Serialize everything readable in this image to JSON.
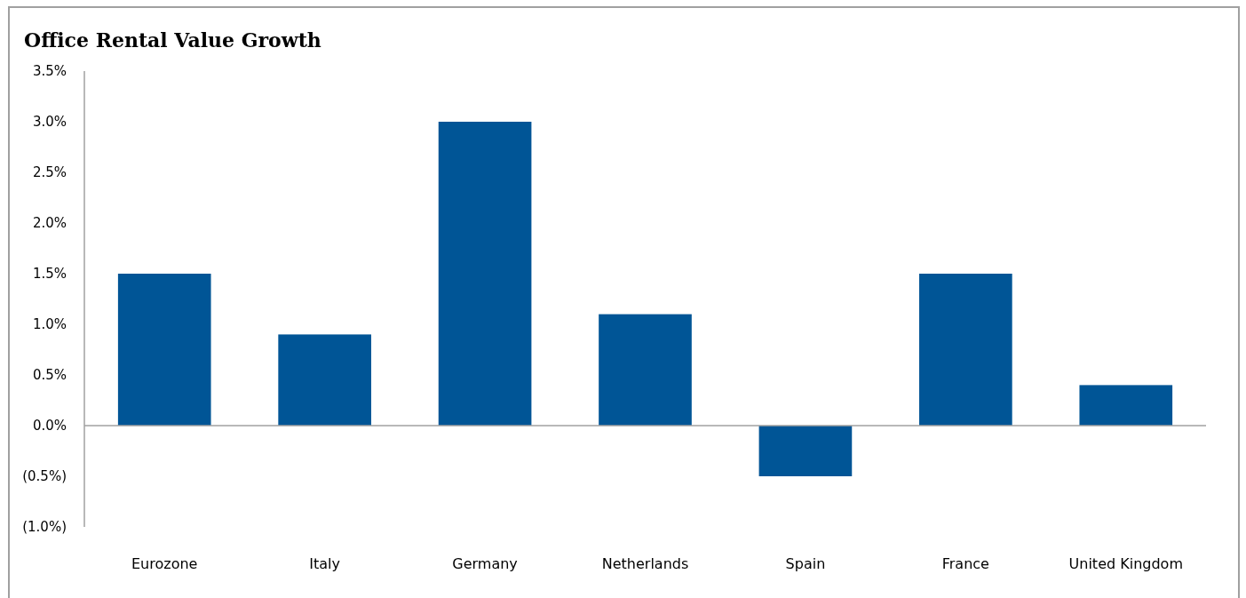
{
  "chart_data": {
    "type": "bar",
    "title": "Office Rental Value Growth",
    "categories": [
      "Eurozone",
      "Italy",
      "Germany",
      "Netherlands",
      "Spain",
      "France",
      "United Kingdom"
    ],
    "values": [
      1.5,
      0.9,
      3.0,
      1.1,
      -0.5,
      1.5,
      0.4
    ],
    "color": "#005596",
    "ylim": [
      -1.0,
      3.5
    ],
    "yticks": [
      {
        "value": -1.0,
        "label": "(1.0%)"
      },
      {
        "value": -0.5,
        "label": "(0.5%)"
      },
      {
        "value": 0,
        "label": "0.0%"
      },
      {
        "value": 0.5,
        "label": "0.5%"
      },
      {
        "value": 1.0,
        "label": "1.0%"
      },
      {
        "value": 1.5,
        "label": "1.5%"
      },
      {
        "value": 2.0,
        "label": "2.0%"
      },
      {
        "value": 2.5,
        "label": "2.5%"
      },
      {
        "value": 3.0,
        "label": "3.0%"
      },
      {
        "value": 3.5,
        "label": "3.5%"
      }
    ],
    "relative": false
  }
}
